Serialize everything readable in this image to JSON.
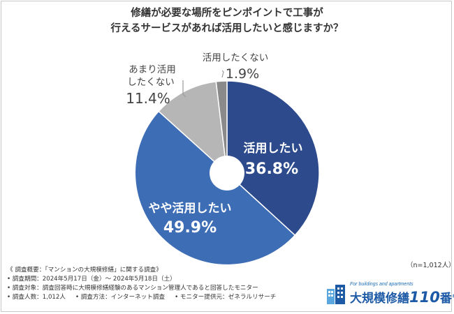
{
  "chart_data": {
    "type": "pie",
    "title_lines": [
      "修繕が必要な場所をピンポイントで工事が",
      "行えるサービスがあれば活用したいと感じますか？"
    ],
    "slices": [
      {
        "label": "活用したい",
        "value": 36.8,
        "display": "36.8%",
        "color": "#2d4a8c"
      },
      {
        "label": "やや活用したい",
        "value": 49.9,
        "display": "49.9%",
        "color": "#3d6db5"
      },
      {
        "label_lines": [
          "あまり活用",
          "したくない"
        ],
        "value": 11.4,
        "display": "11.4%",
        "color": "#b6b6b6"
      },
      {
        "label": "活用したくない",
        "value": 1.9,
        "display": "1.9%",
        "color": "#8a8a8a"
      }
    ],
    "n_note": "（n=1,012人）"
  },
  "footer": {
    "lines": [
      "《 調査概要：「マンションの大規模修繕」に関する調査》",
      "• 調査期間：2024年5月17日（金）～ 2024年5月18日（土）",
      "• 調査対象：調査回答時に大規模修繕経験のあるマンション管理人であると回答したモニター"
    ],
    "last_line": [
      "• 調査人数：1,012人",
      "• 調査方法：インターネット調査",
      "• モニター提供元：ゼネラルリサーチ"
    ]
  },
  "logo": {
    "tagline": "For buildings and apartments",
    "name": "大規模修繕",
    "number": "110",
    "suffix": "番",
    "reg": "®"
  }
}
